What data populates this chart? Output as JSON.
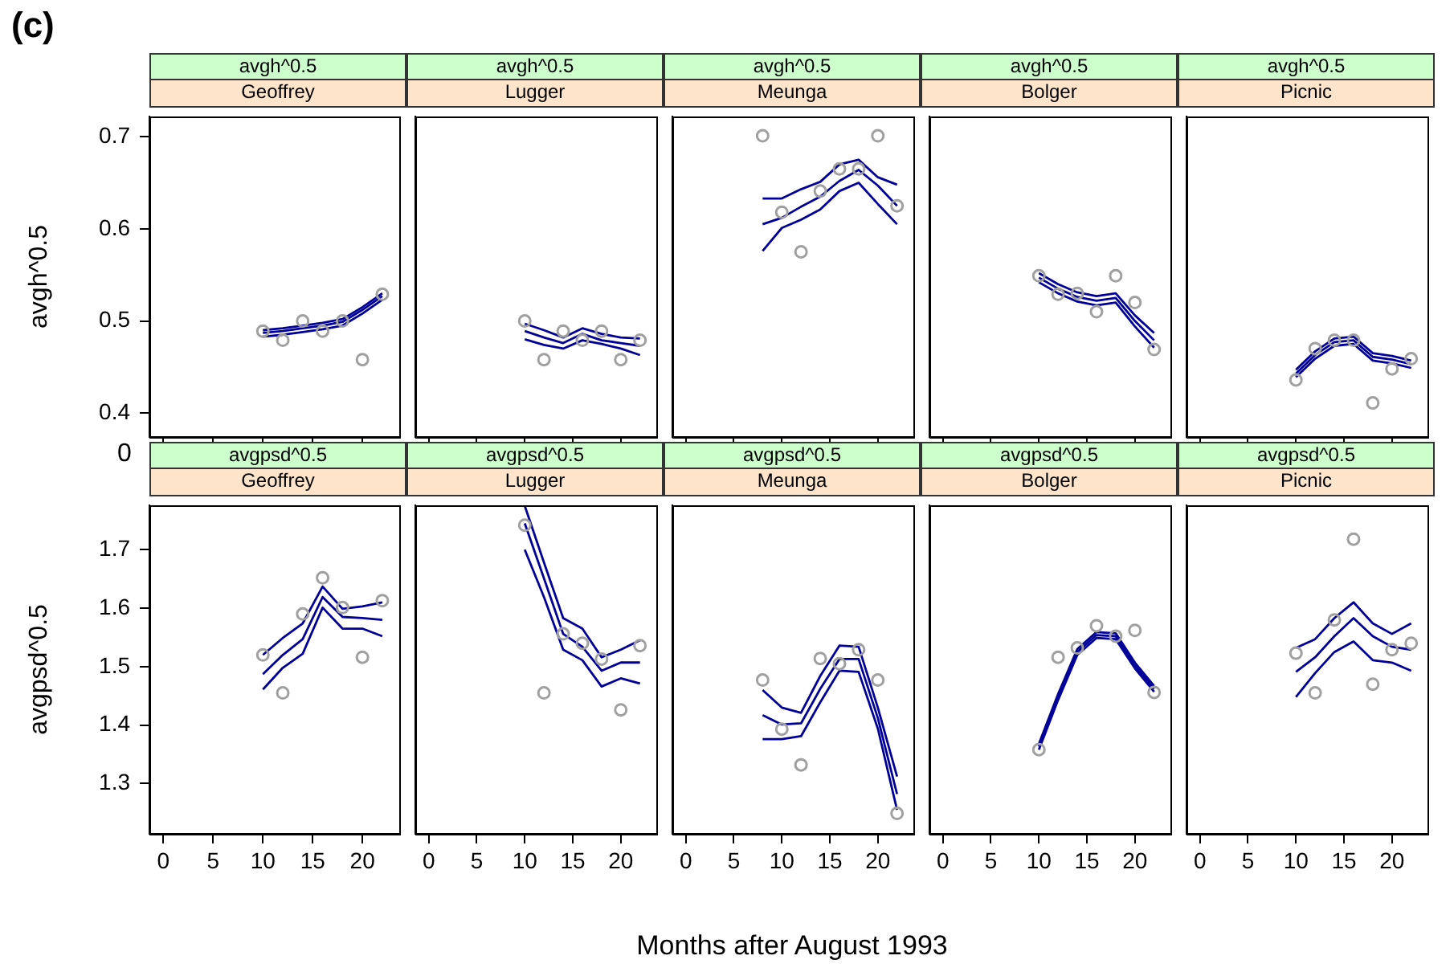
{
  "chart_data": [
    {
      "type": "line",
      "title": "avgh^0.5",
      "subtitle": "Geoffrey",
      "ylabel": "avgh^0.5",
      "annotations": [
        "(c)"
      ],
      "tick_labels": "y",
      "x": [
        10,
        12,
        14,
        16,
        18,
        20,
        22
      ],
      "xlim": [
        -1.4,
        23.7
      ],
      "xticks": [
        0,
        5,
        10,
        15,
        20
      ],
      "ylim": [
        0.374,
        0.722
      ],
      "yticks": [
        0.4,
        0.5,
        0.6,
        0.7
      ],
      "series": [
        {
          "type": "scatter",
          "marker": "circle",
          "color": "#a0a0a0",
          "values": [
            0.489,
            0.479,
            0.5,
            0.489,
            0.5,
            0.458,
            0.529
          ]
        },
        {
          "marker": "none",
          "color": "#000099",
          "values": [
            0.487,
            0.489,
            0.492,
            0.495,
            0.499,
            0.512,
            0.527
          ]
        },
        {
          "marker": "none",
          "color": "#000099",
          "values": [
            0.483,
            0.485,
            0.488,
            0.491,
            0.495,
            0.508,
            0.523
          ]
        },
        {
          "marker": "none",
          "color": "#000099",
          "values": [
            0.49,
            0.492,
            0.495,
            0.498,
            0.502,
            0.515,
            0.53
          ]
        }
      ]
    },
    {
      "type": "line",
      "title": "avgh^0.5",
      "subtitle": "Lugger",
      "tick_labels": false,
      "x": [
        10,
        12,
        14,
        16,
        18,
        20,
        22
      ],
      "xlim": [
        -1.4,
        23.7
      ],
      "xticks": [
        0,
        5,
        10,
        15,
        20
      ],
      "ylim": [
        0.374,
        0.722
      ],
      "yticks": [
        0.4,
        0.5,
        0.6,
        0.7
      ],
      "series": [
        {
          "type": "scatter",
          "marker": "circle",
          "color": "#a0a0a0",
          "values": [
            0.5,
            0.458,
            0.489,
            0.479,
            0.489,
            0.458,
            0.479
          ]
        },
        {
          "marker": "none",
          "color": "#000099",
          "values": [
            0.489,
            0.482,
            0.476,
            0.486,
            0.479,
            0.476,
            0.473
          ]
        },
        {
          "marker": "none",
          "color": "#000099",
          "values": [
            0.48,
            0.474,
            0.47,
            0.479,
            0.475,
            0.47,
            0.463
          ]
        },
        {
          "marker": "none",
          "color": "#000099",
          "values": [
            0.497,
            0.49,
            0.482,
            0.492,
            0.486,
            0.482,
            0.481
          ]
        }
      ]
    },
    {
      "type": "line",
      "title": "avgh^0.5",
      "subtitle": "Meunga",
      "tick_labels": false,
      "x": [
        8,
        10,
        12,
        14,
        16,
        18,
        20,
        22
      ],
      "xlim": [
        -1.4,
        23.7
      ],
      "xticks": [
        0,
        5,
        10,
        15,
        20
      ],
      "ylim": [
        0.374,
        0.722
      ],
      "yticks": [
        0.4,
        0.5,
        0.6,
        0.7
      ],
      "series": [
        {
          "type": "scatter",
          "marker": "circle",
          "color": "#a0a0a0",
          "values": [
            0.701,
            0.618,
            0.575,
            0.641,
            0.665,
            0.665,
            0.701,
            0.625
          ]
        },
        {
          "marker": "none",
          "color": "#000099",
          "values": [
            0.605,
            0.612,
            0.624,
            0.635,
            0.652,
            0.664,
            0.647,
            0.625
          ]
        },
        {
          "marker": "none",
          "color": "#000099",
          "values": [
            0.576,
            0.601,
            0.61,
            0.621,
            0.641,
            0.65,
            0.627,
            0.605
          ]
        },
        {
          "marker": "none",
          "color": "#000099",
          "values": [
            0.633,
            0.633,
            0.643,
            0.651,
            0.67,
            0.675,
            0.656,
            0.648
          ]
        }
      ]
    },
    {
      "type": "line",
      "title": "avgh^0.5",
      "subtitle": "Bolger",
      "tick_labels": false,
      "x": [
        10,
        12,
        14,
        16,
        18,
        20,
        22
      ],
      "xlim": [
        -1.4,
        23.7
      ],
      "xticks": [
        0,
        5,
        10,
        15,
        20
      ],
      "ylim": [
        0.374,
        0.722
      ],
      "yticks": [
        0.4,
        0.5,
        0.6,
        0.7
      ],
      "series": [
        {
          "type": "scatter",
          "marker": "circle",
          "color": "#a0a0a0",
          "values": [
            0.549,
            0.529,
            0.53,
            0.51,
            0.549,
            0.52,
            0.469
          ]
        },
        {
          "marker": "none",
          "color": "#000099",
          "values": [
            0.547,
            0.535,
            0.526,
            0.522,
            0.525,
            0.5,
            0.479
          ]
        },
        {
          "marker": "none",
          "color": "#000099",
          "values": [
            0.542,
            0.53,
            0.521,
            0.517,
            0.52,
            0.494,
            0.471
          ]
        },
        {
          "marker": "none",
          "color": "#000099",
          "values": [
            0.552,
            0.54,
            0.531,
            0.527,
            0.53,
            0.506,
            0.487
          ]
        }
      ]
    },
    {
      "type": "line",
      "title": "avgh^0.5",
      "subtitle": "Picnic",
      "tick_labels": false,
      "x": [
        10,
        12,
        14,
        16,
        18,
        20,
        22
      ],
      "xlim": [
        -1.4,
        23.7
      ],
      "xticks": [
        0,
        5,
        10,
        15,
        20
      ],
      "ylim": [
        0.374,
        0.722
      ],
      "yticks": [
        0.4,
        0.5,
        0.6,
        0.7
      ],
      "series": [
        {
          "type": "scatter",
          "marker": "circle",
          "color": "#a0a0a0",
          "values": [
            0.436,
            0.47,
            0.479,
            0.479,
            0.411,
            0.448,
            0.459
          ]
        },
        {
          "marker": "none",
          "color": "#000099",
          "values": [
            0.443,
            0.463,
            0.477,
            0.479,
            0.461,
            0.458,
            0.453
          ]
        },
        {
          "marker": "none",
          "color": "#000099",
          "values": [
            0.439,
            0.459,
            0.473,
            0.475,
            0.457,
            0.454,
            0.449
          ]
        },
        {
          "marker": "none",
          "color": "#000099",
          "values": [
            0.447,
            0.467,
            0.481,
            0.483,
            0.465,
            0.462,
            0.457
          ]
        }
      ]
    },
    {
      "type": "line",
      "title": "avgpsd^0.5",
      "subtitle": "Geoffrey",
      "ylabel": "avgpsd^0.5",
      "annotations": [
        "0"
      ],
      "x": [
        10,
        12,
        14,
        16,
        18,
        20,
        22
      ],
      "xlim": [
        -1.4,
        23.7
      ],
      "xticks": [
        0,
        5,
        10,
        15,
        20
      ],
      "ylim": [
        1.214,
        1.776
      ],
      "yticks": [
        1.3,
        1.4,
        1.5,
        1.6,
        1.7
      ],
      "series": [
        {
          "type": "scatter",
          "marker": "circle",
          "color": "#a0a0a0",
          "values": [
            1.52,
            1.455,
            1.59,
            1.652,
            1.601,
            1.516,
            1.613
          ]
        },
        {
          "marker": "none",
          "color": "#000099",
          "values": [
            1.487,
            1.52,
            1.547,
            1.619,
            1.585,
            1.583,
            1.58
          ]
        },
        {
          "marker": "none",
          "color": "#000099",
          "values": [
            1.461,
            1.498,
            1.522,
            1.601,
            1.565,
            1.565,
            1.552
          ]
        },
        {
          "marker": "none",
          "color": "#000099",
          "values": [
            1.52,
            1.549,
            1.574,
            1.637,
            1.599,
            1.603,
            1.61
          ]
        }
      ]
    },
    {
      "type": "line",
      "title": "avgpsd^0.5",
      "subtitle": "Lugger",
      "tick_labels": "x",
      "x": [
        10,
        12,
        14,
        16,
        18,
        20,
        22
      ],
      "xlim": [
        -1.4,
        23.7
      ],
      "xticks": [
        0,
        5,
        10,
        15,
        20
      ],
      "ylim": [
        1.214,
        1.776
      ],
      "yticks": [
        1.3,
        1.4,
        1.5,
        1.6,
        1.7
      ],
      "series": [
        {
          "type": "scatter",
          "marker": "circle",
          "color": "#a0a0a0",
          "values": [
            1.742,
            1.455,
            1.556,
            1.54,
            1.513,
            1.426,
            1.536
          ]
        },
        {
          "marker": "none",
          "color": "#000099",
          "values": [
            1.745,
            1.651,
            1.556,
            1.534,
            1.493,
            1.507,
            1.507
          ]
        },
        {
          "marker": "none",
          "color": "#000099",
          "values": [
            1.7,
            1.619,
            1.529,
            1.511,
            1.466,
            1.48,
            1.471
          ]
        },
        {
          "marker": "none",
          "color": "#000099",
          "values": [
            1.775,
            1.678,
            1.583,
            1.565,
            1.516,
            1.529,
            1.545
          ]
        }
      ]
    },
    {
      "type": "line",
      "title": "avgpsd^0.5",
      "subtitle": "Meunga",
      "xlabel": "Months after August 1993",
      "tick_labels": "x",
      "x": [
        8,
        10,
        12,
        14,
        16,
        18,
        20,
        22
      ],
      "xlim": [
        -1.4,
        23.7
      ],
      "xticks": [
        0,
        5,
        10,
        15,
        20
      ],
      "ylim": [
        1.214,
        1.776
      ],
      "yticks": [
        1.3,
        1.4,
        1.5,
        1.6,
        1.7
      ],
      "series": [
        {
          "type": "scatter",
          "marker": "circle",
          "color": "#a0a0a0",
          "values": [
            1.477,
            1.393,
            1.332,
            1.514,
            1.505,
            1.529,
            1.477,
            1.249
          ]
        },
        {
          "marker": "none",
          "color": "#000099",
          "values": [
            1.417,
            1.401,
            1.403,
            1.462,
            1.513,
            1.513,
            1.412,
            1.282
          ]
        },
        {
          "marker": "none",
          "color": "#000099",
          "values": [
            1.376,
            1.376,
            1.381,
            1.439,
            1.493,
            1.491,
            1.394,
            1.255
          ]
        },
        {
          "marker": "none",
          "color": "#000099",
          "values": [
            1.46,
            1.43,
            1.421,
            1.484,
            1.536,
            1.534,
            1.43,
            1.312
          ]
        }
      ]
    },
    {
      "type": "line",
      "title": "avgpsd^0.5",
      "subtitle": "Bolger",
      "tick_labels": "x",
      "x": [
        10,
        12,
        14,
        16,
        18,
        20,
        22
      ],
      "xlim": [
        -1.4,
        23.7
      ],
      "xticks": [
        0,
        5,
        10,
        15,
        20
      ],
      "ylim": [
        1.214,
        1.776
      ],
      "yticks": [
        1.3,
        1.4,
        1.5,
        1.6,
        1.7
      ],
      "series": [
        {
          "type": "scatter",
          "marker": "circle",
          "color": "#a0a0a0",
          "values": [
            1.358,
            1.516,
            1.532,
            1.57,
            1.552,
            1.562,
            1.456
          ]
        },
        {
          "marker": "none",
          "color": "#000099",
          "values": [
            1.363,
            1.448,
            1.525,
            1.554,
            1.552,
            1.502,
            1.462
          ]
        },
        {
          "marker": "none",
          "color": "#000099",
          "values": [
            1.358,
            1.443,
            1.52,
            1.549,
            1.547,
            1.497,
            1.457
          ]
        },
        {
          "marker": "none",
          "color": "#000099",
          "values": [
            1.368,
            1.453,
            1.53,
            1.559,
            1.557,
            1.507,
            1.467
          ]
        }
      ]
    },
    {
      "type": "line",
      "title": "avgpsd^0.5",
      "subtitle": "Picnic",
      "tick_labels": "x",
      "x": [
        10,
        12,
        14,
        16,
        18,
        20,
        22
      ],
      "xlim": [
        -1.4,
        23.7
      ],
      "xticks": [
        0,
        5,
        10,
        15,
        20
      ],
      "ylim": [
        1.214,
        1.776
      ],
      "yticks": [
        1.3,
        1.4,
        1.5,
        1.6,
        1.7
      ],
      "series": [
        {
          "type": "scatter",
          "marker": "circle",
          "color": "#a0a0a0",
          "values": [
            1.523,
            1.455,
            1.58,
            1.718,
            1.47,
            1.529,
            1.54
          ]
        },
        {
          "marker": "none",
          "color": "#000099",
          "values": [
            1.491,
            1.516,
            1.552,
            1.583,
            1.552,
            1.534,
            1.529
          ]
        },
        {
          "marker": "none",
          "color": "#000099",
          "values": [
            1.448,
            1.489,
            1.525,
            1.543,
            1.511,
            1.507,
            1.493
          ]
        },
        {
          "marker": "none",
          "color": "#000099",
          "values": [
            1.532,
            1.547,
            1.583,
            1.61,
            1.574,
            1.556,
            1.574
          ]
        }
      ]
    }
  ]
}
